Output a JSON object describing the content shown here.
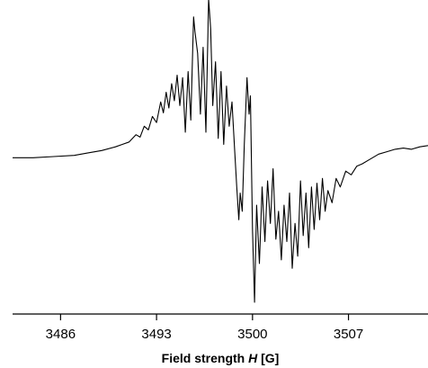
{
  "chart_data": {
    "type": "line",
    "title": "",
    "xlabel": {
      "prefix": "Field strength ",
      "variable": "H",
      "suffix": " [G]"
    },
    "ylabel": "",
    "xlim": [
      3482.5,
      3512.8
    ],
    "ylim": [
      -1,
      1
    ],
    "x_ticks": [
      3486,
      3493,
      3500,
      3507
    ],
    "x_tick_labels": [
      "3486",
      "3493",
      "3500",
      "3507"
    ],
    "grid": false,
    "legend": "none",
    "line_color": "#000000",
    "series": [
      {
        "points": [
          [
            3482.5,
            -0.01
          ],
          [
            3484.0,
            -0.01
          ],
          [
            3485.5,
            0.0
          ],
          [
            3487.0,
            0.01
          ],
          [
            3488.0,
            0.03
          ],
          [
            3489.0,
            0.05
          ],
          [
            3490.0,
            0.08
          ],
          [
            3490.5,
            0.1
          ],
          [
            3491.0,
            0.12
          ],
          [
            3491.5,
            0.18
          ],
          [
            3491.8,
            0.16
          ],
          [
            3492.1,
            0.25
          ],
          [
            3492.4,
            0.22
          ],
          [
            3492.7,
            0.33
          ],
          [
            3493.0,
            0.28
          ],
          [
            3493.3,
            0.45
          ],
          [
            3493.5,
            0.36
          ],
          [
            3493.7,
            0.53
          ],
          [
            3493.9,
            0.4
          ],
          [
            3494.1,
            0.6
          ],
          [
            3494.3,
            0.46
          ],
          [
            3494.5,
            0.67
          ],
          [
            3494.7,
            0.42
          ],
          [
            3494.9,
            0.65
          ],
          [
            3495.1,
            0.2
          ],
          [
            3495.3,
            0.7
          ],
          [
            3495.5,
            0.3
          ],
          [
            3495.7,
            1.15
          ],
          [
            3495.8,
            1.03
          ],
          [
            3496.0,
            0.85
          ],
          [
            3496.2,
            0.35
          ],
          [
            3496.4,
            0.9
          ],
          [
            3496.6,
            0.2
          ],
          [
            3496.8,
            1.3
          ],
          [
            3496.95,
            1.05
          ],
          [
            3497.1,
            0.42
          ],
          [
            3497.3,
            0.78
          ],
          [
            3497.5,
            0.15
          ],
          [
            3497.7,
            0.7
          ],
          [
            3497.9,
            0.1
          ],
          [
            3498.1,
            0.58
          ],
          [
            3498.3,
            0.25
          ],
          [
            3498.5,
            0.45
          ],
          [
            3498.7,
            0.05
          ],
          [
            3498.85,
            -0.25
          ],
          [
            3499.0,
            -0.52
          ],
          [
            3499.1,
            -0.3
          ],
          [
            3499.25,
            -0.45
          ],
          [
            3499.4,
            0.1
          ],
          [
            3499.6,
            0.65
          ],
          [
            3499.75,
            0.35
          ],
          [
            3499.85,
            0.5
          ],
          [
            3500.0,
            -0.6
          ],
          [
            3500.15,
            -1.2
          ],
          [
            3500.3,
            -0.4
          ],
          [
            3500.5,
            -0.88
          ],
          [
            3500.7,
            -0.25
          ],
          [
            3500.9,
            -0.7
          ],
          [
            3501.1,
            -0.2
          ],
          [
            3501.3,
            -0.55
          ],
          [
            3501.5,
            -0.1
          ],
          [
            3501.7,
            -0.68
          ],
          [
            3501.9,
            -0.45
          ],
          [
            3502.1,
            -0.85
          ],
          [
            3502.3,
            -0.4
          ],
          [
            3502.5,
            -0.7
          ],
          [
            3502.7,
            -0.3
          ],
          [
            3502.9,
            -0.92
          ],
          [
            3503.1,
            -0.55
          ],
          [
            3503.3,
            -0.82
          ],
          [
            3503.5,
            -0.2
          ],
          [
            3503.7,
            -0.65
          ],
          [
            3503.9,
            -0.3
          ],
          [
            3504.1,
            -0.75
          ],
          [
            3504.3,
            -0.25
          ],
          [
            3504.5,
            -0.6
          ],
          [
            3504.7,
            -0.22
          ],
          [
            3504.9,
            -0.52
          ],
          [
            3505.1,
            -0.18
          ],
          [
            3505.3,
            -0.45
          ],
          [
            3505.5,
            -0.28
          ],
          [
            3505.8,
            -0.38
          ],
          [
            3506.1,
            -0.18
          ],
          [
            3506.4,
            -0.25
          ],
          [
            3506.8,
            -0.12
          ],
          [
            3507.2,
            -0.15
          ],
          [
            3507.6,
            -0.08
          ],
          [
            3508.0,
            -0.06
          ],
          [
            3508.6,
            -0.02
          ],
          [
            3509.2,
            0.02
          ],
          [
            3509.8,
            0.04
          ],
          [
            3510.4,
            0.06
          ],
          [
            3511.0,
            0.07
          ],
          [
            3511.6,
            0.06
          ],
          [
            3512.2,
            0.08
          ],
          [
            3512.8,
            0.09
          ]
        ]
      }
    ]
  }
}
